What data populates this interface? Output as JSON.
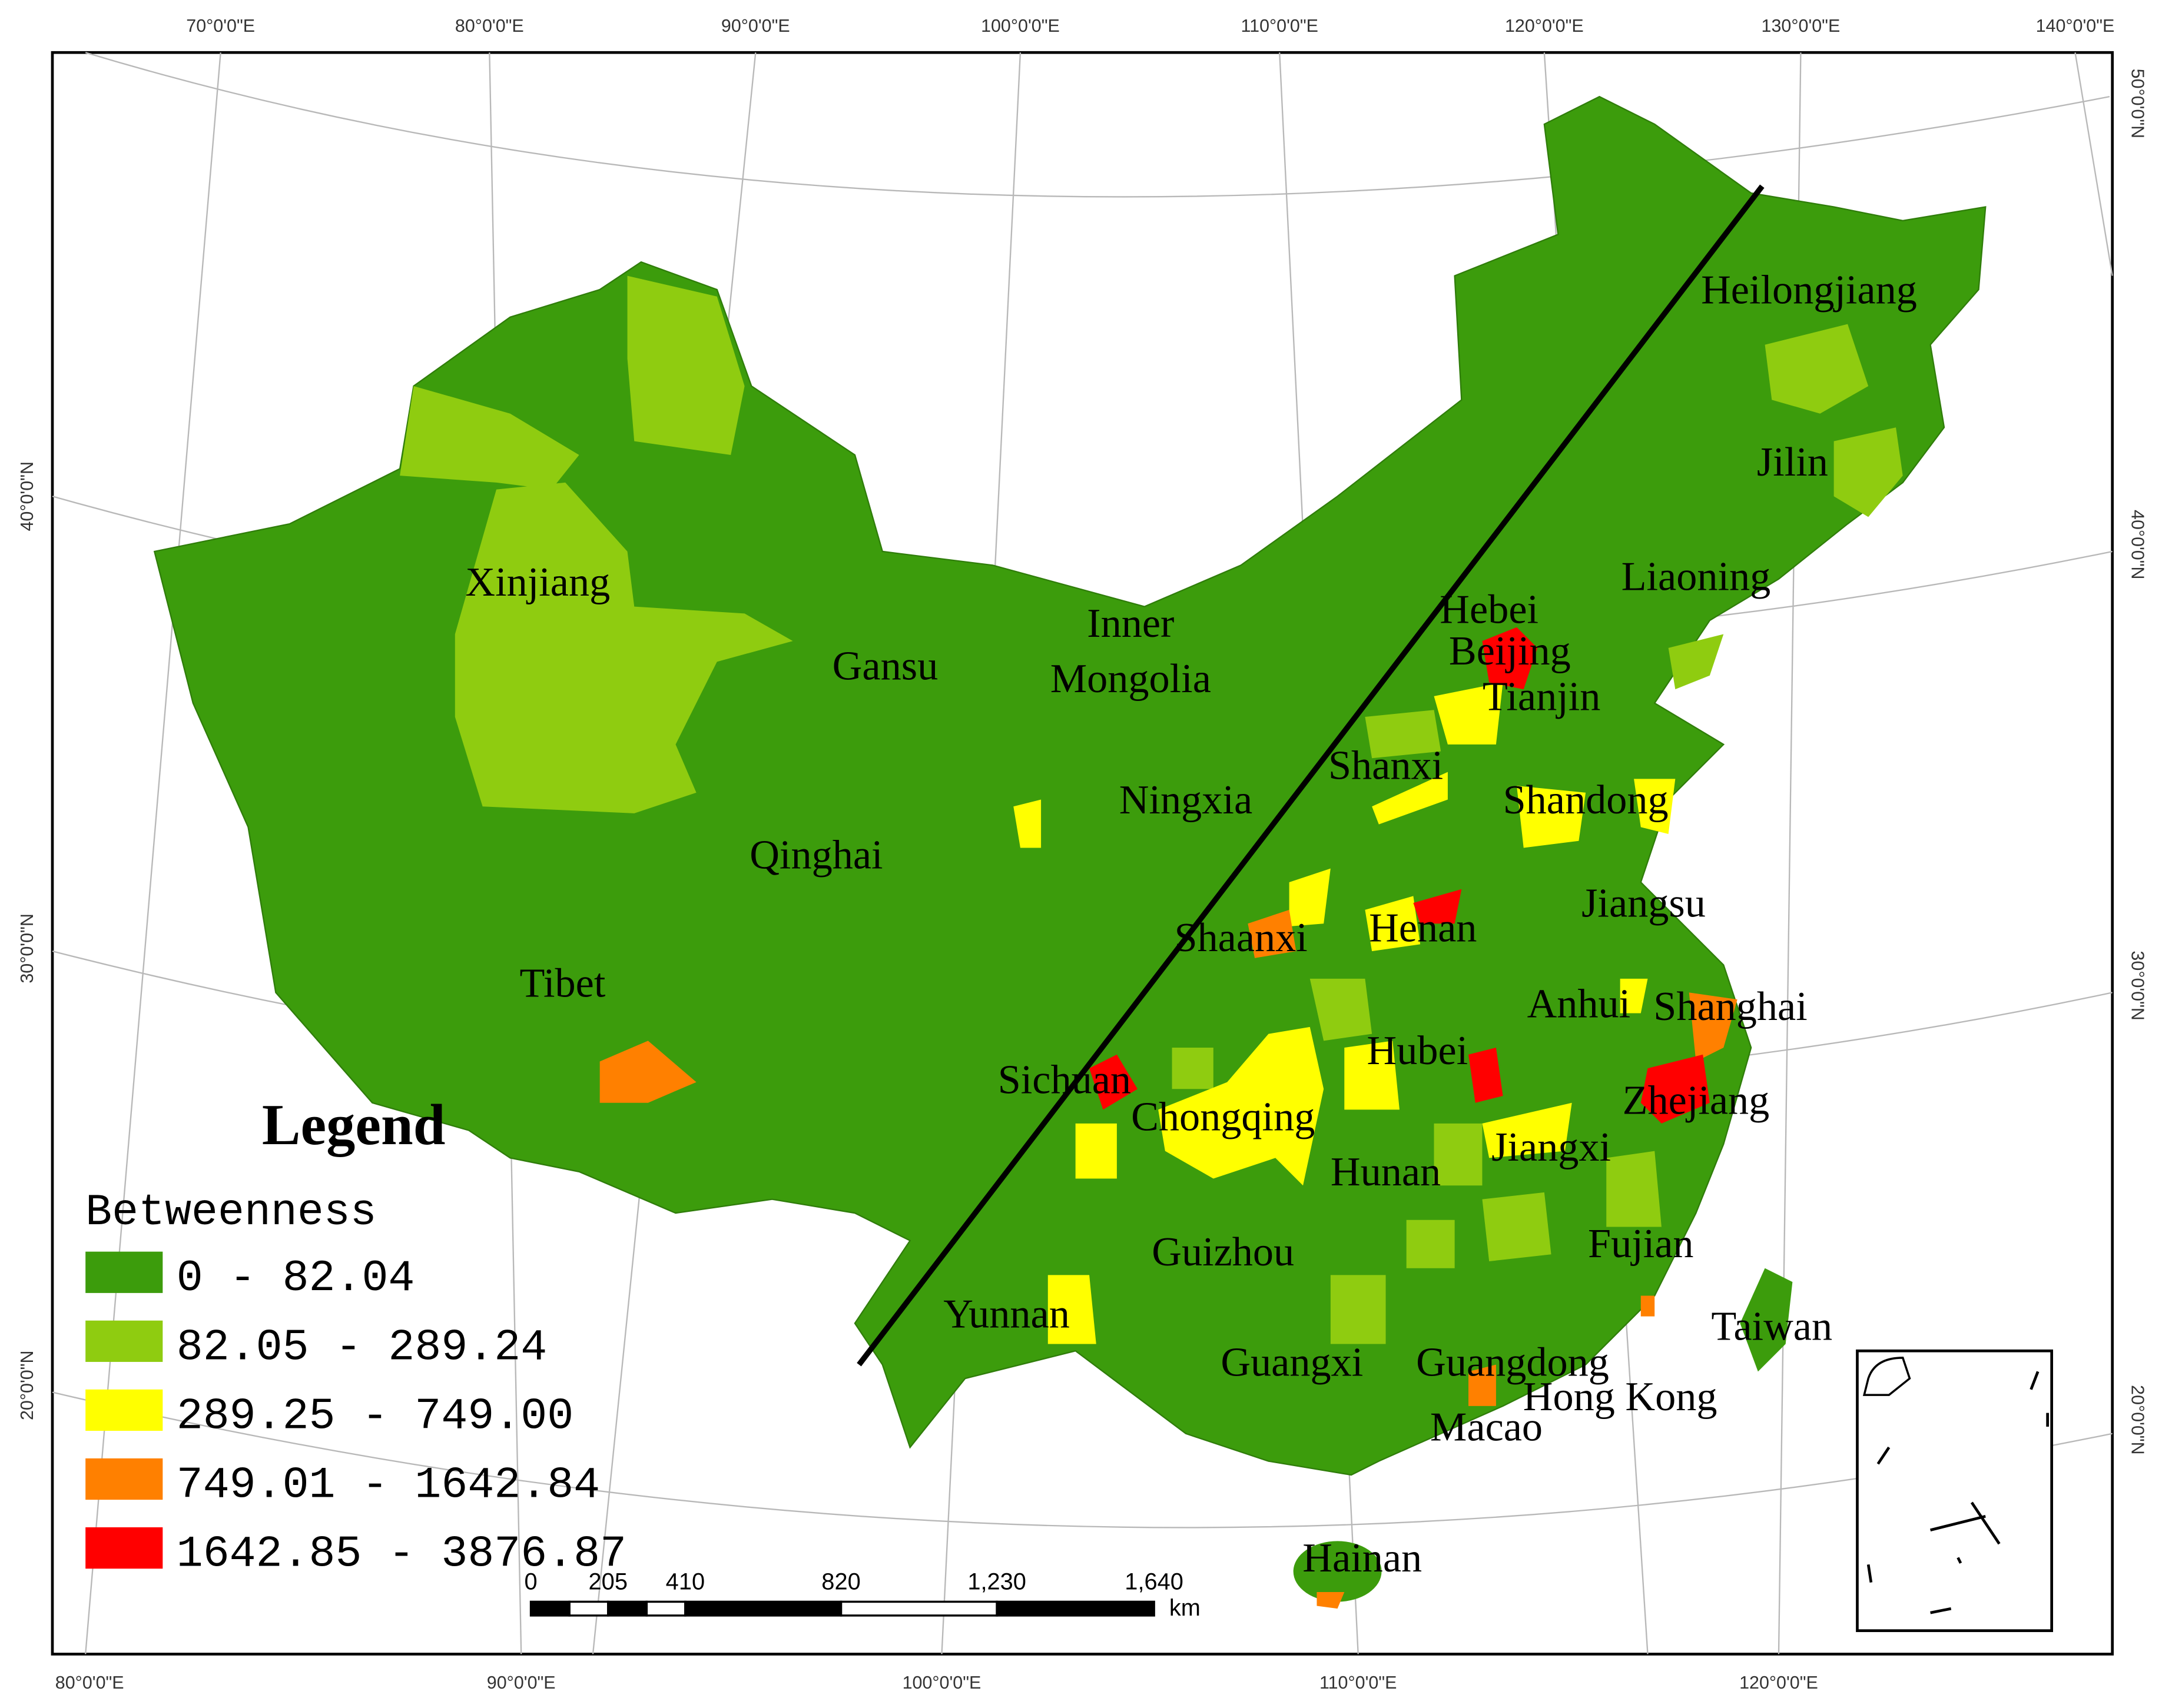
{
  "map": {
    "regions": [
      {
        "label": "Heilongjiang"
      },
      {
        "label": "Jilin"
      },
      {
        "label": "Liaoning"
      },
      {
        "label": "Xinjiang"
      },
      {
        "label": "Hebei"
      },
      {
        "label": [
          "Inner",
          "Mongolia"
        ]
      },
      {
        "label": "Beijing"
      },
      {
        "label": "Tianjin"
      },
      {
        "label": "Gansu"
      },
      {
        "label": "Shanxi"
      },
      {
        "label": "Ningxia"
      },
      {
        "label": "Shandong"
      },
      {
        "label": "Qinghai"
      },
      {
        "label": "Jiangsu"
      },
      {
        "label": "Henan"
      },
      {
        "label": "Shaanxi"
      },
      {
        "label": "Tibet"
      },
      {
        "label": "Anhui"
      },
      {
        "label": "Shanghai"
      },
      {
        "label": "Hubei"
      },
      {
        "label": "Sichuan"
      },
      {
        "label": "Zhejiang"
      },
      {
        "label": "Chongqing"
      },
      {
        "label": "Jiangxi"
      },
      {
        "label": "Hunan"
      },
      {
        "label": "Guizhou"
      },
      {
        "label": "Fujian"
      },
      {
        "label": "Yunnan"
      },
      {
        "label": "Taiwan"
      },
      {
        "label": "Guangxi"
      },
      {
        "label": "Guangdong"
      },
      {
        "label": "Hong Kong"
      },
      {
        "label": "Macao"
      },
      {
        "label": "Hainan"
      }
    ],
    "legend": {
      "title": "Legend",
      "field": "Betweenness",
      "classes": [
        {
          "label": "0 - 82.04",
          "color": "#3c9c0c"
        },
        {
          "label": "82.05 - 289.24",
          "color": "#8fcc10"
        },
        {
          "label": "289.25 - 749.00",
          "color": "#ffff00"
        },
        {
          "label": "749.01 - 1642.84",
          "color": "#ff8000"
        },
        {
          "label": "1642.85 - 3876.87",
          "color": "#ff0000"
        }
      ]
    },
    "graticule": {
      "top": [
        "70°0'0\"E",
        "80°0'0\"E",
        "90°0'0\"E",
        "100°0'0\"E",
        "110°0'0\"E",
        "120°0'0\"E",
        "130°0'0\"E",
        "140°0'0\"E"
      ],
      "bottom": [
        "80°0'0\"E",
        "90°0'0\"E",
        "100°0'0\"E",
        "110°0'0\"E",
        "120°0'0\"E"
      ],
      "left": [
        "40°0'0\"N",
        "30°0'0\"N",
        "20°0'0\"N"
      ],
      "right": [
        "50°0'0\"N",
        "40°0'0\"N",
        "30°0'0\"N",
        "20°0'0\"N"
      ]
    },
    "scale_bar": {
      "ticks": [
        "0",
        "205",
        "410",
        "820",
        "1,230",
        "1,640"
      ],
      "unit": "km"
    }
  }
}
